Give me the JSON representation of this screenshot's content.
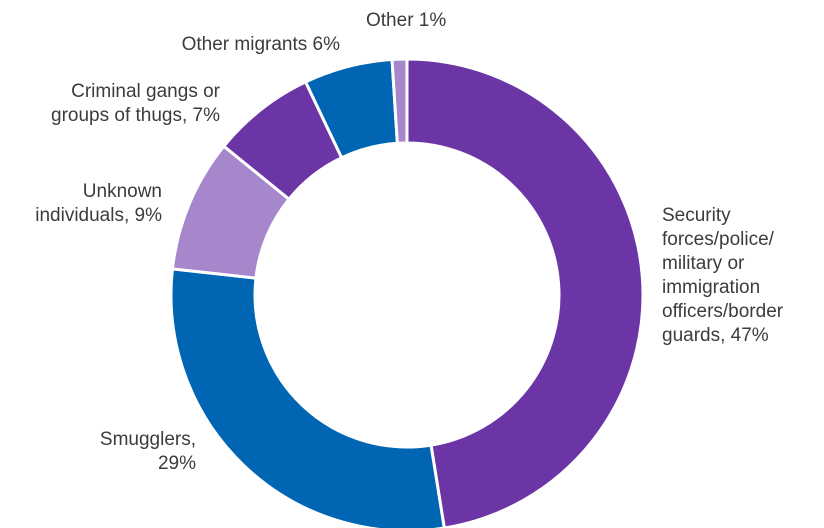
{
  "chart_data": {
    "type": "pie",
    "donut": true,
    "slices": [
      {
        "label": [
          "Security",
          "forces/police/",
          "military or",
          "immigration",
          "officers/border",
          "guards, 47%"
        ],
        "value": 47,
        "color": "#6c35a6"
      },
      {
        "label": [
          "Smugglers,",
          "29%"
        ],
        "value": 29,
        "color": "#0066b3"
      },
      {
        "label": [
          "Unknown",
          "individuals, 9%"
        ],
        "value": 9,
        "color": "#a787cc"
      },
      {
        "label": [
          "Criminal gangs or",
          "groups of thugs, 7%"
        ],
        "value": 7,
        "color": "#6c35a6"
      },
      {
        "label": [
          "Other migrants 6%"
        ],
        "value": 6,
        "color": "#0066b3"
      },
      {
        "label": [
          "Other 1%"
        ],
        "value": 1,
        "color": "#a787cc"
      }
    ]
  }
}
